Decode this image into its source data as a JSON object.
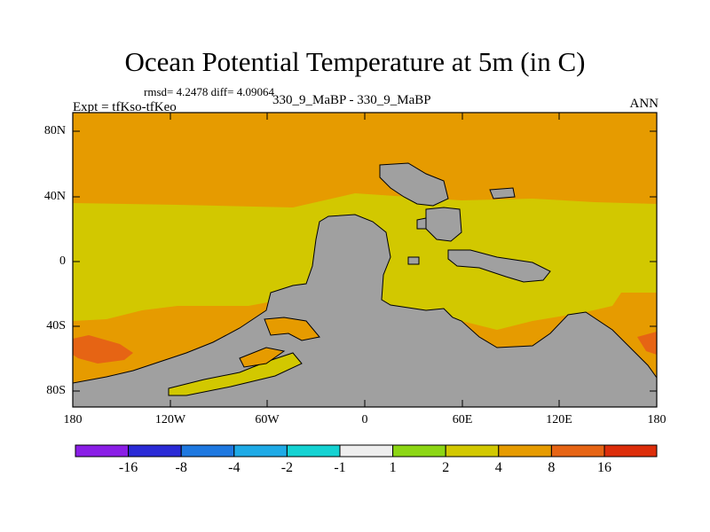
{
  "plot": {
    "title": "Ocean Potential Temperature at 5m (in C)",
    "stats": "rmsd= 4.2478 diff= 4.09064",
    "expt": "Expt = tfKso-tfKeo",
    "cases": "330_9_MaBP - 330_9_MaBP",
    "season": "ANN"
  },
  "axes": {
    "lat_labels": [
      "80N",
      "40N",
      "0",
      "40S",
      "80S"
    ],
    "lon_labels": [
      "180",
      "120W",
      "60W",
      "0",
      "60E",
      "120E",
      "180"
    ]
  },
  "colorbar": {
    "labels": [
      "-16",
      "-8",
      "-4",
      "-2",
      "-1",
      "1",
      "2",
      "4",
      "8",
      "16"
    ],
    "colors": [
      "#8a1ee6",
      "#2a2ad6",
      "#1e78e0",
      "#1eaae6",
      "#14d2d2",
      "#eeeeee",
      "#8cd614",
      "#d2c800",
      "#e69b00",
      "#e66414",
      "#dc2d0a"
    ]
  },
  "map_colors": {
    "land": "#a0a0a0",
    "band_2_4": "#d2c800",
    "band_4_8": "#e69b00",
    "band_8_16": "#e66414"
  }
}
